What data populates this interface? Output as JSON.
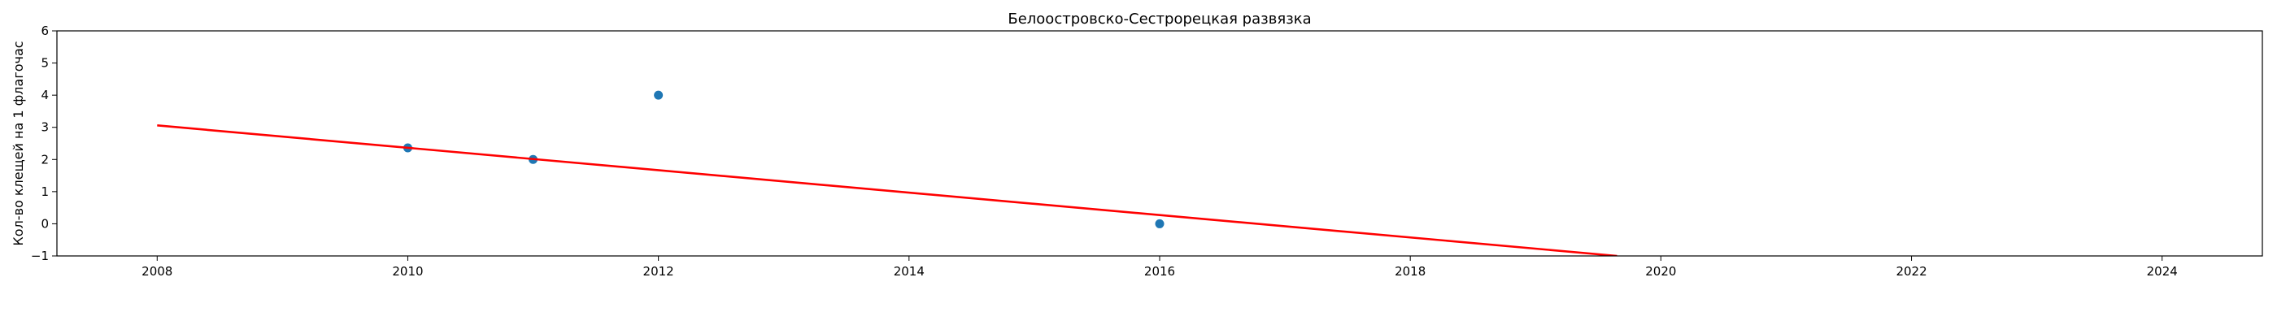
{
  "chart_data": {
    "type": "scatter",
    "title": "Белоостровско-Сестрорецкая развязка",
    "xlabel": "",
    "ylabel": "Кол-во клещей на 1 флагочас",
    "xlim": [
      2007.2,
      2024.8
    ],
    "ylim": [
      -1,
      6
    ],
    "x_ticks": [
      2008,
      2010,
      2012,
      2014,
      2016,
      2018,
      2020,
      2022,
      2024
    ],
    "y_ticks": [
      -1,
      0,
      1,
      2,
      3,
      4,
      5,
      6
    ],
    "grid": false,
    "series": [
      {
        "kind": "scatter",
        "color": "#1f77b4",
        "x": [
          2010,
          2011,
          2012,
          2016
        ],
        "y": [
          2.36,
          2.0,
          4.0,
          0.0
        ]
      },
      {
        "kind": "line",
        "color": "#ff0000",
        "x": [
          2008,
          2019.65
        ],
        "y": [
          3.06,
          -1.0
        ]
      }
    ]
  }
}
